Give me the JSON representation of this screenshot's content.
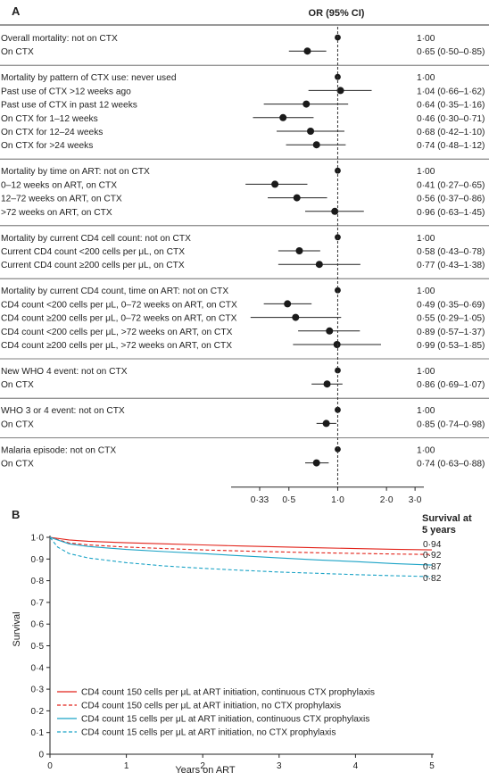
{
  "chart_data": [
    {
      "type": "forest",
      "panel_label": "A",
      "header": "OR (95% CI)",
      "x_scale": "log",
      "xlim": [
        0.22,
        3.4
      ],
      "reference_value": 1.0,
      "ticks": [
        {
          "value": 0.33,
          "label": "0·33"
        },
        {
          "value": 0.5,
          "label": "0·5"
        },
        {
          "value": 1.0,
          "label": "1·0"
        },
        {
          "value": 2.0,
          "label": "2·0"
        },
        {
          "value": 3.0,
          "label": "3·0"
        }
      ],
      "groups": [
        {
          "rows": [
            {
              "label": "Overall mortality: not on CTX",
              "or": 1.0,
              "text": "1·00"
            },
            {
              "label": "On CTX",
              "or": 0.65,
              "lo": 0.5,
              "hi": 0.85,
              "text": "0·65 (0·50–0·85)"
            }
          ]
        },
        {
          "rows": [
            {
              "label": "Mortality by pattern of CTX use: never used",
              "or": 1.0,
              "text": "1·00"
            },
            {
              "label": "Past use of CTX >12 weeks ago",
              "or": 1.04,
              "lo": 0.66,
              "hi": 1.62,
              "text": "1·04 (0·66–1·62)"
            },
            {
              "label": "Past use of CTX in past 12 weeks",
              "or": 0.64,
              "lo": 0.35,
              "hi": 1.16,
              "text": "0·64 (0·35–1·16)"
            },
            {
              "label": "On CTX for 1–12 weeks",
              "or": 0.46,
              "lo": 0.3,
              "hi": 0.71,
              "text": "0·46 (0·30–0·71)"
            },
            {
              "label": "On CTX for 12–24 weeks",
              "or": 0.68,
              "lo": 0.42,
              "hi": 1.1,
              "text": "0·68 (0·42–1·10)"
            },
            {
              "label": "On CTX for >24 weeks",
              "or": 0.74,
              "lo": 0.48,
              "hi": 1.12,
              "text": "0·74 (0·48–1·12)"
            }
          ]
        },
        {
          "rows": [
            {
              "label": "Mortality by time on ART: not on CTX",
              "or": 1.0,
              "text": "1·00"
            },
            {
              "label": "0–12 weeks on ART, on CTX",
              "or": 0.41,
              "lo": 0.27,
              "hi": 0.65,
              "text": "0·41 (0·27–0·65)"
            },
            {
              "label": "12–72 weeks on ART, on CTX",
              "or": 0.56,
              "lo": 0.37,
              "hi": 0.86,
              "text": "0·56 (0·37–0·86)"
            },
            {
              "label": ">72 weeks on ART, on CTX",
              "or": 0.96,
              "lo": 0.63,
              "hi": 1.45,
              "text": "0·96 (0·63–1·45)"
            }
          ]
        },
        {
          "rows": [
            {
              "label": "Mortality by current CD4 cell count: not on CTX",
              "or": 1.0,
              "text": "1·00"
            },
            {
              "label": "Current CD4 count <200 cells per μL, on CTX",
              "or": 0.58,
              "lo": 0.43,
              "hi": 0.78,
              "text": "0·58 (0·43–0·78)"
            },
            {
              "label": "Current CD4 count ≥200 cells per μL, on CTX",
              "or": 0.77,
              "lo": 0.43,
              "hi": 1.38,
              "text": "0·77 (0·43–1·38)"
            }
          ]
        },
        {
          "rows": [
            {
              "label": "Mortality by current CD4 count, time on ART: not on CTX",
              "or": 1.0,
              "text": "1·00"
            },
            {
              "label": "CD4 count <200 cells per μL, 0–72 weeks on ART, on CTX",
              "or": 0.49,
              "lo": 0.35,
              "hi": 0.69,
              "text": "0·49 (0·35–0·69)"
            },
            {
              "label": "CD4 count ≥200 cells per μL, 0–72 weeks on ART, on CTX",
              "or": 0.55,
              "lo": 0.29,
              "hi": 1.05,
              "text": "0·55 (0·29–1·05)"
            },
            {
              "label": "CD4 count <200 cells per μL, >72 weeks on ART, on CTX",
              "or": 0.89,
              "lo": 0.57,
              "hi": 1.37,
              "text": "0·89 (0·57–1·37)"
            },
            {
              "label": "CD4 count ≥200 cells per μL, >72 weeks on ART, on CTX",
              "or": 0.99,
              "lo": 0.53,
              "hi": 1.85,
              "text": "0·99 (0·53–1·85)"
            }
          ]
        },
        {
          "rows": [
            {
              "label": "New WHO 4 event: not on CTX",
              "or": 1.0,
              "text": "1·00"
            },
            {
              "label": "On CTX",
              "or": 0.86,
              "lo": 0.69,
              "hi": 1.07,
              "text": "0·86 (0·69–1·07)"
            }
          ]
        },
        {
          "rows": [
            {
              "label": "WHO 3 or 4 event: not on CTX",
              "or": 1.0,
              "text": "1·00"
            },
            {
              "label": "On CTX",
              "or": 0.85,
              "lo": 0.74,
              "hi": 0.98,
              "text": "0·85 (0·74–0·98)"
            }
          ]
        },
        {
          "rows": [
            {
              "label": "Malaria episode: not on CTX",
              "or": 1.0,
              "text": "1·00"
            },
            {
              "label": "On CTX",
              "or": 0.74,
              "lo": 0.63,
              "hi": 0.88,
              "text": "0·74 (0·63–0·88)"
            }
          ]
        }
      ]
    },
    {
      "type": "line",
      "panel_label": "B",
      "xlabel": "Years on ART",
      "ylabel": "Survival",
      "xlim": [
        0,
        5
      ],
      "ylim": [
        0,
        1.0
      ],
      "x_ticks": [
        {
          "value": 0,
          "label": "0"
        },
        {
          "value": 1,
          "label": "1"
        },
        {
          "value": 2,
          "label": "2"
        },
        {
          "value": 3,
          "label": "3"
        },
        {
          "value": 4,
          "label": "4"
        },
        {
          "value": 5,
          "label": "5"
        }
      ],
      "y_ticks": [
        {
          "value": 0,
          "label": "0"
        },
        {
          "value": 0.1,
          "label": "0·1"
        },
        {
          "value": 0.2,
          "label": "0·2"
        },
        {
          "value": 0.3,
          "label": "0·3"
        },
        {
          "value": 0.4,
          "label": "0·4"
        },
        {
          "value": 0.5,
          "label": "0·5"
        },
        {
          "value": 0.6,
          "label": "0·6"
        },
        {
          "value": 0.7,
          "label": "0·7"
        },
        {
          "value": 0.8,
          "label": "0·8"
        },
        {
          "value": 0.9,
          "label": "0·9"
        },
        {
          "value": 1.0,
          "label": "1·0"
        }
      ],
      "end_header": [
        "Survival at",
        "5 years"
      ],
      "legend_position": "bottom-left",
      "series": [
        {
          "name": "CD4 count 150 cells per μL at ART initiation, continuous CTX prophylaxis",
          "color": "#e2231a",
          "dash": "solid",
          "end_label": "0·94",
          "x": [
            0,
            0.25,
            0.5,
            1,
            1.5,
            2,
            2.5,
            3,
            3.5,
            4,
            4.5,
            5
          ],
          "y": [
            1.0,
            0.988,
            0.982,
            0.975,
            0.97,
            0.965,
            0.96,
            0.956,
            0.952,
            0.948,
            0.945,
            0.942
          ]
        },
        {
          "name": "CD4 count 150 cells per μL at ART initiation, no CTX prophylaxis",
          "color": "#e2231a",
          "dash": "dashed",
          "end_label": "0·92",
          "x": [
            0,
            0.25,
            0.5,
            1,
            1.5,
            2,
            2.5,
            3,
            3.5,
            4,
            4.5,
            5
          ],
          "y": [
            1.0,
            0.974,
            0.965,
            0.955,
            0.948,
            0.942,
            0.937,
            0.933,
            0.929,
            0.926,
            0.923,
            0.921
          ]
        },
        {
          "name": "CD4 count 15 cells per μL at ART initiation, continuous CTX prophylaxis",
          "color": "#1ba3c6",
          "dash": "solid",
          "end_label": "0·87",
          "x": [
            0,
            0.25,
            0.5,
            1,
            1.5,
            2,
            2.5,
            3,
            3.5,
            4,
            4.5,
            5
          ],
          "y": [
            1.0,
            0.97,
            0.958,
            0.944,
            0.934,
            0.925,
            0.915,
            0.905,
            0.896,
            0.888,
            0.879,
            0.872
          ]
        },
        {
          "name": "CD4 count 15 cells per μL at ART initiation, no CTX prophylaxis",
          "color": "#1ba3c6",
          "dash": "dashed",
          "end_label": "0·82",
          "x": [
            0,
            0.1,
            0.25,
            0.5,
            1,
            1.5,
            2,
            2.5,
            3,
            3.5,
            4,
            4.5,
            5
          ],
          "y": [
            1.0,
            0.955,
            0.925,
            0.905,
            0.883,
            0.868,
            0.857,
            0.848,
            0.84,
            0.834,
            0.828,
            0.823,
            0.819
          ]
        }
      ]
    }
  ]
}
